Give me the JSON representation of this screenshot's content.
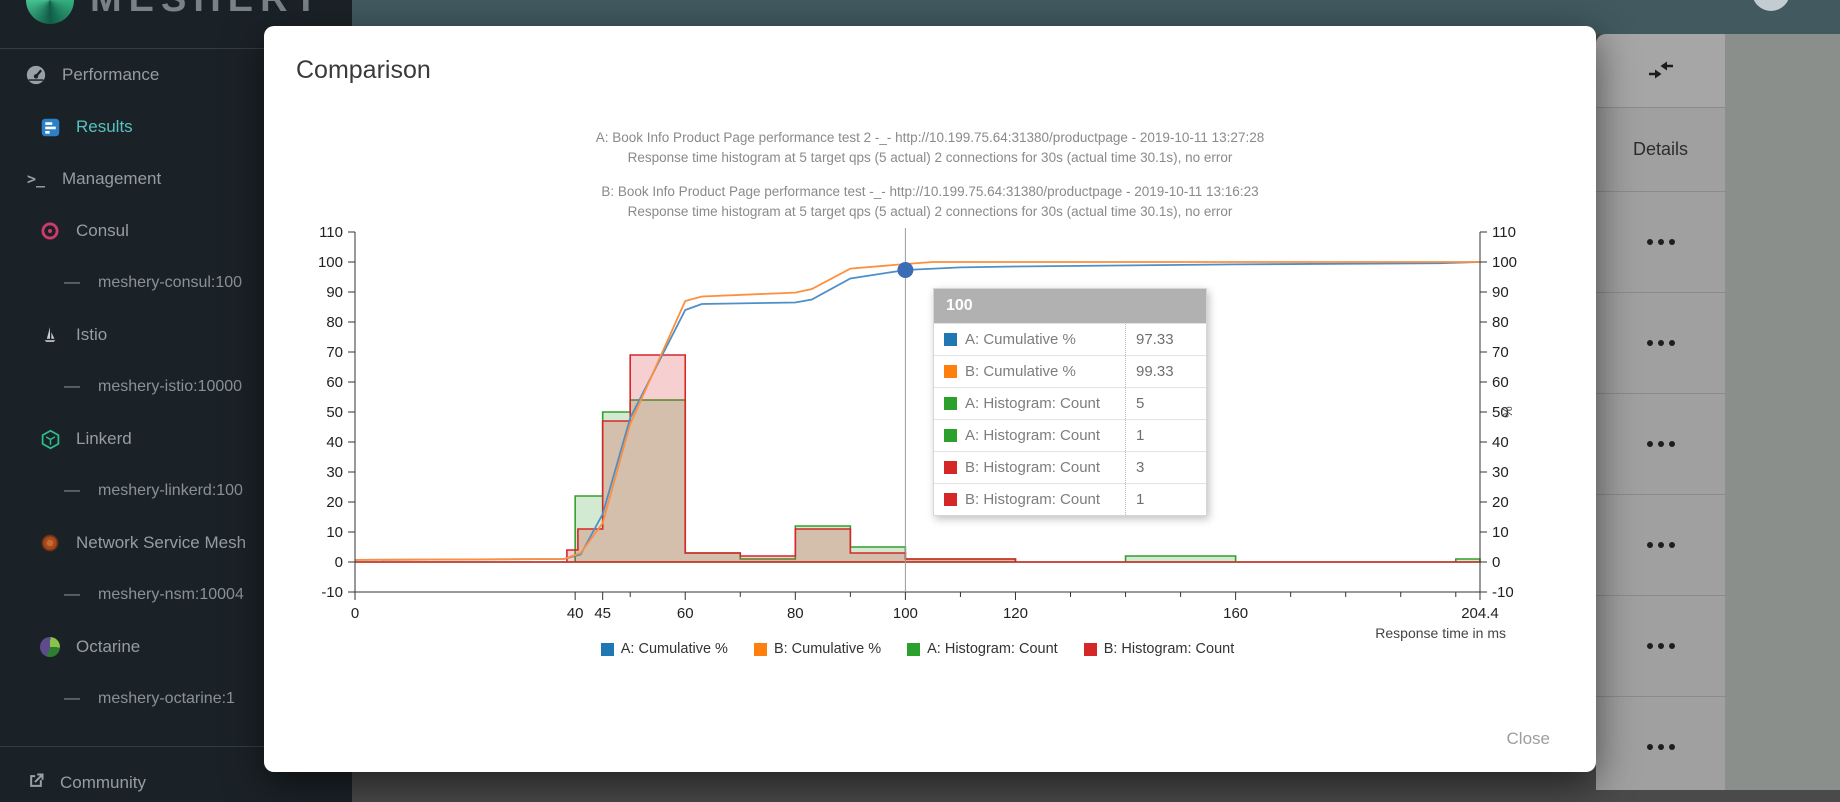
{
  "app": {
    "logo_text": "MESHERY"
  },
  "sidebar": {
    "items": [
      {
        "label": "Performance",
        "icon": "speedometer-icon",
        "level": 0,
        "active": false
      },
      {
        "label": "Results",
        "icon": "results-icon",
        "level": 1,
        "active": true
      },
      {
        "label": "Management",
        "icon": "terminal-icon",
        "level": 0,
        "active": false
      },
      {
        "label": "Consul",
        "icon": "consul-icon",
        "level": 1,
        "active": false
      },
      {
        "label": "meshery-consul:100",
        "icon": "dash-icon",
        "level": 2,
        "active": false
      },
      {
        "label": "Istio",
        "icon": "istio-icon",
        "level": 1,
        "active": false
      },
      {
        "label": "meshery-istio:10000",
        "icon": "dash-icon",
        "level": 2,
        "active": false
      },
      {
        "label": "Linkerd",
        "icon": "linkerd-icon",
        "level": 1,
        "active": false
      },
      {
        "label": "meshery-linkerd:100",
        "icon": "dash-icon",
        "level": 2,
        "active": false
      },
      {
        "label": "Network Service Mesh",
        "icon": "nsm-icon",
        "level": 1,
        "active": false
      },
      {
        "label": "meshery-nsm:10004",
        "icon": "dash-icon",
        "level": 2,
        "active": false
      },
      {
        "label": "Octarine",
        "icon": "octarine-icon",
        "level": 1,
        "active": false
      },
      {
        "label": "meshery-octarine:1",
        "icon": "dash-icon",
        "level": 2,
        "active": false
      }
    ],
    "footer_item": {
      "label": "Community",
      "icon": "external-link-icon"
    }
  },
  "results_table": {
    "header": "Details",
    "toolbar_icon": "collapse-columns-icon",
    "row_count": 6,
    "row_menu_icon": "ellipsis-icon"
  },
  "modal": {
    "title": "Comparison",
    "close_label": "Close",
    "titles": [
      "A: Book Info Product Page performance test 2 -_- http://10.199.75.64:31380/productpage - 2019-10-11 13:27:28",
      "Response time histogram at 5 target qps (5 actual) 2 connections for 30s (actual time 30.1s), no error",
      "B: Book Info Product Page performance test -_- http://10.199.75.64:31380/productpage - 2019-10-11 13:16:23",
      "Response time histogram at 5 target qps (5 actual) 2 connections for 30s (actual time 30.1s), no error"
    ]
  },
  "chart_data": {
    "type": "line",
    "subtype": "cumulative-percent-lines-with-histogram-step-areas",
    "xlabel": "Response time in ms",
    "ylabel_right": "%",
    "xlim": [
      0,
      204.4
    ],
    "ylim": [
      -10,
      110
    ],
    "grid": false,
    "legend_position": "bottom",
    "x_ticks_labeled": [
      0,
      40,
      45,
      60,
      80,
      100,
      120,
      160,
      204.4
    ],
    "x_ticks_minor": [
      50,
      70,
      90,
      110,
      130,
      140,
      150,
      170,
      180,
      190,
      200
    ],
    "y_ticks": [
      -10,
      0,
      10,
      20,
      30,
      40,
      50,
      60,
      70,
      80,
      90,
      100,
      110
    ],
    "series": [
      {
        "name": "A: Cumulative %",
        "type": "line",
        "color": "#4e8fc7",
        "legend_color": "#1f77b4",
        "points": [
          [
            0,
            0.7
          ],
          [
            38,
            1
          ],
          [
            41,
            2.5
          ],
          [
            45,
            16
          ],
          [
            50,
            48
          ],
          [
            60,
            84
          ],
          [
            63,
            86
          ],
          [
            80,
            86.5
          ],
          [
            83,
            87.5
          ],
          [
            90,
            94.5
          ],
          [
            100,
            97.33
          ],
          [
            110,
            98.2
          ],
          [
            120,
            98.5
          ],
          [
            160,
            99.2
          ],
          [
            197,
            99.6
          ],
          [
            204.4,
            100
          ]
        ]
      },
      {
        "name": "B: Cumulative %",
        "type": "line",
        "color": "#fd8f3d",
        "legend_color": "#ff7f0e",
        "points": [
          [
            0,
            0.7
          ],
          [
            38,
            1
          ],
          [
            41,
            3
          ],
          [
            45,
            13
          ],
          [
            50,
            46
          ],
          [
            60,
            87
          ],
          [
            63,
            88.5
          ],
          [
            80,
            89.8
          ],
          [
            83,
            91
          ],
          [
            90,
            97.8
          ],
          [
            100,
            99.33
          ],
          [
            105,
            100
          ],
          [
            204.4,
            100
          ]
        ]
      },
      {
        "name": "A: Histogram: Count",
        "type": "area-step",
        "color": "#33a02c",
        "legend_color": "#2ca02c",
        "fill_opacity": 0.22,
        "steps": [
          [
            0,
            0
          ],
          [
            40,
            22
          ],
          [
            45,
            50
          ],
          [
            50,
            54
          ],
          [
            60,
            3
          ],
          [
            70,
            1
          ],
          [
            80,
            12
          ],
          [
            90,
            5
          ],
          [
            100,
            1
          ],
          [
            120,
            0
          ],
          [
            140,
            2
          ],
          [
            160,
            0
          ],
          [
            200,
            1
          ]
        ]
      },
      {
        "name": "B: Histogram: Count",
        "type": "area-step",
        "color": "#d62728",
        "legend_color": "#d62728",
        "fill_opacity": 0.22,
        "steps": [
          [
            0,
            0
          ],
          [
            38.5,
            4
          ],
          [
            40.5,
            11
          ],
          [
            45,
            47
          ],
          [
            50,
            69
          ],
          [
            60,
            3
          ],
          [
            70,
            2
          ],
          [
            80,
            11
          ],
          [
            90,
            3
          ],
          [
            100,
            1
          ],
          [
            120,
            0
          ]
        ]
      }
    ],
    "crosshair_x": 100,
    "focus_point": {
      "series": "A: Cumulative %",
      "x": 100,
      "y": 97.33,
      "color": "#3a6db5"
    },
    "tooltip": {
      "header": "100",
      "rows": [
        {
          "color": "#1f77b4",
          "name": "A: Cumulative %",
          "value": "97.33"
        },
        {
          "color": "#ff7f0e",
          "name": "B: Cumulative %",
          "value": "99.33"
        },
        {
          "color": "#2ca02c",
          "name": "A: Histogram: Count",
          "value": "5"
        },
        {
          "color": "#2ca02c",
          "name": "A: Histogram: Count",
          "value": "1"
        },
        {
          "color": "#d62728",
          "name": "B: Histogram: Count",
          "value": "3"
        },
        {
          "color": "#d62728",
          "name": "B: Histogram: Count",
          "value": "1"
        }
      ]
    }
  }
}
